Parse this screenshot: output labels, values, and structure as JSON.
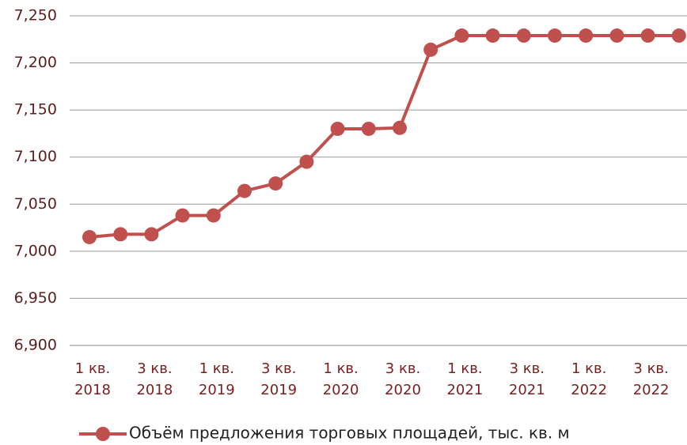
{
  "chart_data": {
    "type": "line",
    "categories": [
      "1 кв. 2018",
      null,
      "3 кв. 2018",
      null,
      "1 кв. 2019",
      null,
      "3 кв. 2019",
      null,
      "1 кв. 2020",
      null,
      "3 кв. 2020",
      null,
      "1 кв. 2021",
      null,
      "3 кв. 2021",
      null,
      "1 кв. 2022",
      null,
      "3 кв. 2022",
      null
    ],
    "series": [
      {
        "name": "Объём предложения торговых площадей, тыс. кв. м",
        "color": "#c0504d",
        "values": [
          7015,
          7018,
          7018,
          7038,
          7038,
          7064,
          7072,
          7095,
          7130,
          7130,
          7131,
          7214,
          7229,
          7229,
          7229,
          7229,
          7229,
          7229,
          7229,
          7229
        ]
      }
    ],
    "ylim": [
      6900,
      7250
    ],
    "yticks": [
      {
        "value": 6900,
        "label": "6,900"
      },
      {
        "value": 6950,
        "label": "6,950"
      },
      {
        "value": 7000,
        "label": "7,000"
      },
      {
        "value": 7050,
        "label": "7,050"
      },
      {
        "value": 7100,
        "label": "7,100"
      },
      {
        "value": 7150,
        "label": "7,150"
      },
      {
        "value": 7200,
        "label": "7,200"
      },
      {
        "value": 7250,
        "label": "7,250"
      }
    ],
    "grid": true,
    "legend": "bottom"
  }
}
